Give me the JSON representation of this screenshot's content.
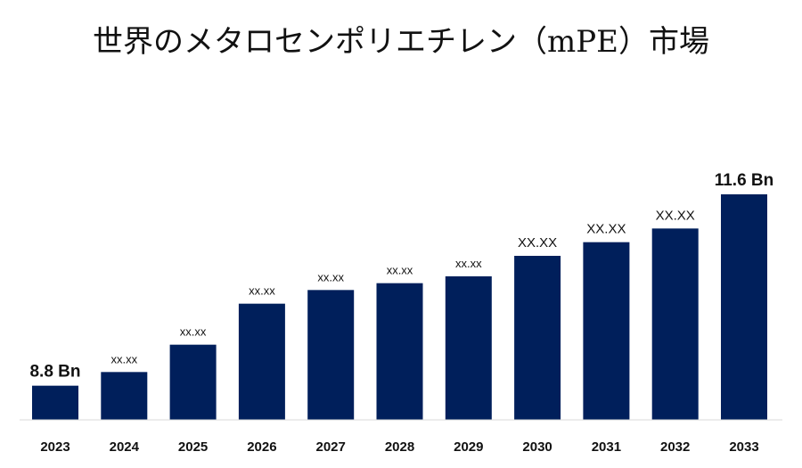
{
  "chart_data": {
    "type": "bar",
    "title": "世界のメタロセンポリエチレン（mPE）市場",
    "categories": [
      "2023",
      "2024",
      "2025",
      "2026",
      "2027",
      "2028",
      "2029",
      "2030",
      "2031",
      "2032",
      "2033"
    ],
    "values": [
      8.8,
      9.0,
      9.4,
      10.0,
      10.2,
      10.3,
      10.4,
      10.7,
      10.9,
      11.1,
      11.6
    ],
    "data_labels": [
      "8.8 Bn",
      "xx.xx",
      "xx.xx",
      "xx.xx",
      "xx.xx",
      "xx.xx",
      "xx.xx",
      "XX.XX",
      "XX.XX",
      "XX.XX",
      "11.6 Bn"
    ],
    "bar_color": "#001f5b",
    "ylim": [
      8.3,
      11.6
    ],
    "grid": false,
    "legend": "none"
  }
}
